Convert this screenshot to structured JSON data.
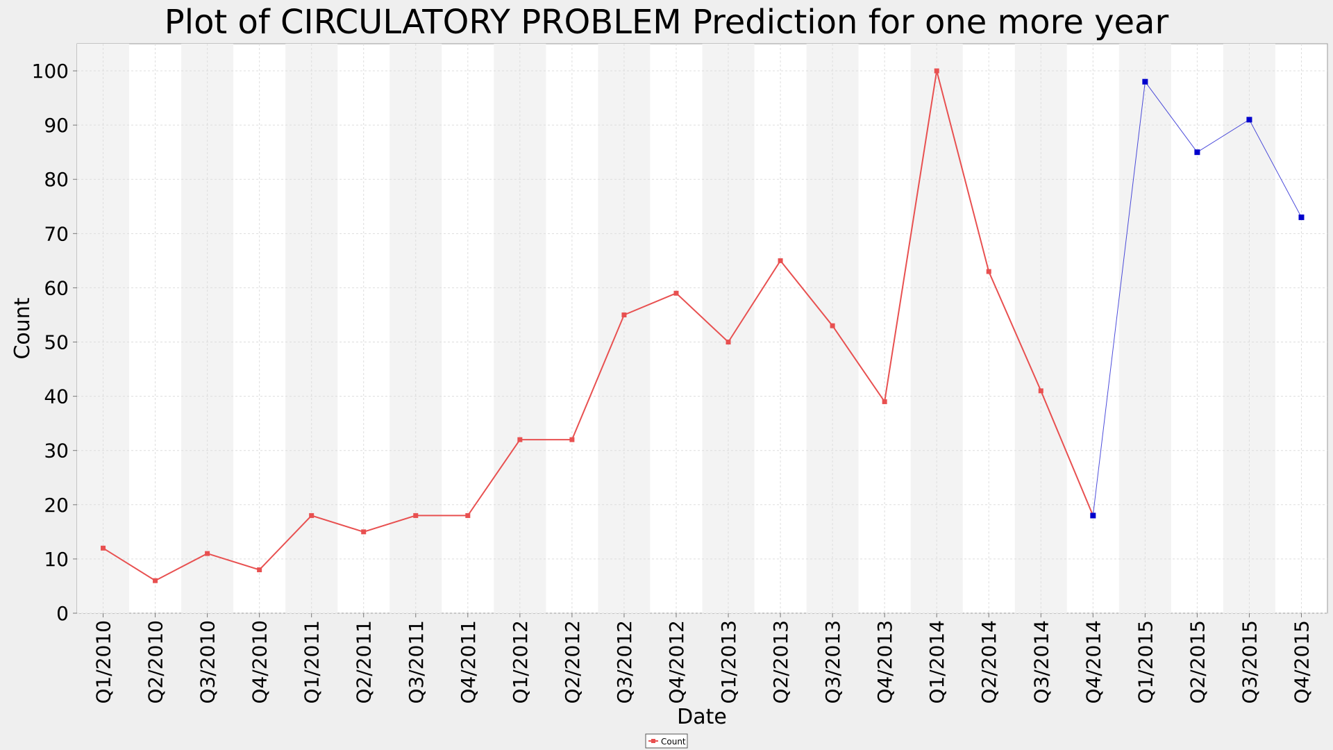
{
  "chart_data": {
    "type": "line",
    "title": "Plot of CIRCULATORY PROBLEM Prediction for one more year",
    "xlabel": "Date",
    "ylabel": "Count",
    "ylim": [
      0,
      105
    ],
    "yticks": [
      0,
      10,
      20,
      30,
      40,
      50,
      60,
      70,
      80,
      90,
      100
    ],
    "grid": true,
    "legend_position": "bottom-center",
    "categories": [
      "Q1/2010",
      "Q2/2010",
      "Q3/2010",
      "Q4/2010",
      "Q1/2011",
      "Q2/2011",
      "Q3/2011",
      "Q4/2011",
      "Q1/2012",
      "Q2/2012",
      "Q3/2012",
      "Q4/2012",
      "Q1/2013",
      "Q2/2013",
      "Q3/2013",
      "Q4/2013",
      "Q1/2014",
      "Q2/2014",
      "Q3/2014",
      "Q4/2014",
      "Q1/2015",
      "Q2/2015",
      "Q3/2015",
      "Q4/2015"
    ],
    "series": [
      {
        "name": "Count",
        "color": "#e85050",
        "values": [
          12,
          6,
          11,
          8,
          18,
          15,
          18,
          18,
          32,
          32,
          55,
          59,
          50,
          65,
          53,
          39,
          100,
          63,
          41,
          18,
          null,
          null,
          null,
          null
        ]
      },
      {
        "color": "#0000cc",
        "values": [
          null,
          null,
          null,
          null,
          null,
          null,
          null,
          null,
          null,
          null,
          null,
          null,
          null,
          null,
          null,
          null,
          null,
          null,
          null,
          18,
          98,
          85,
          91,
          73
        ]
      }
    ]
  }
}
